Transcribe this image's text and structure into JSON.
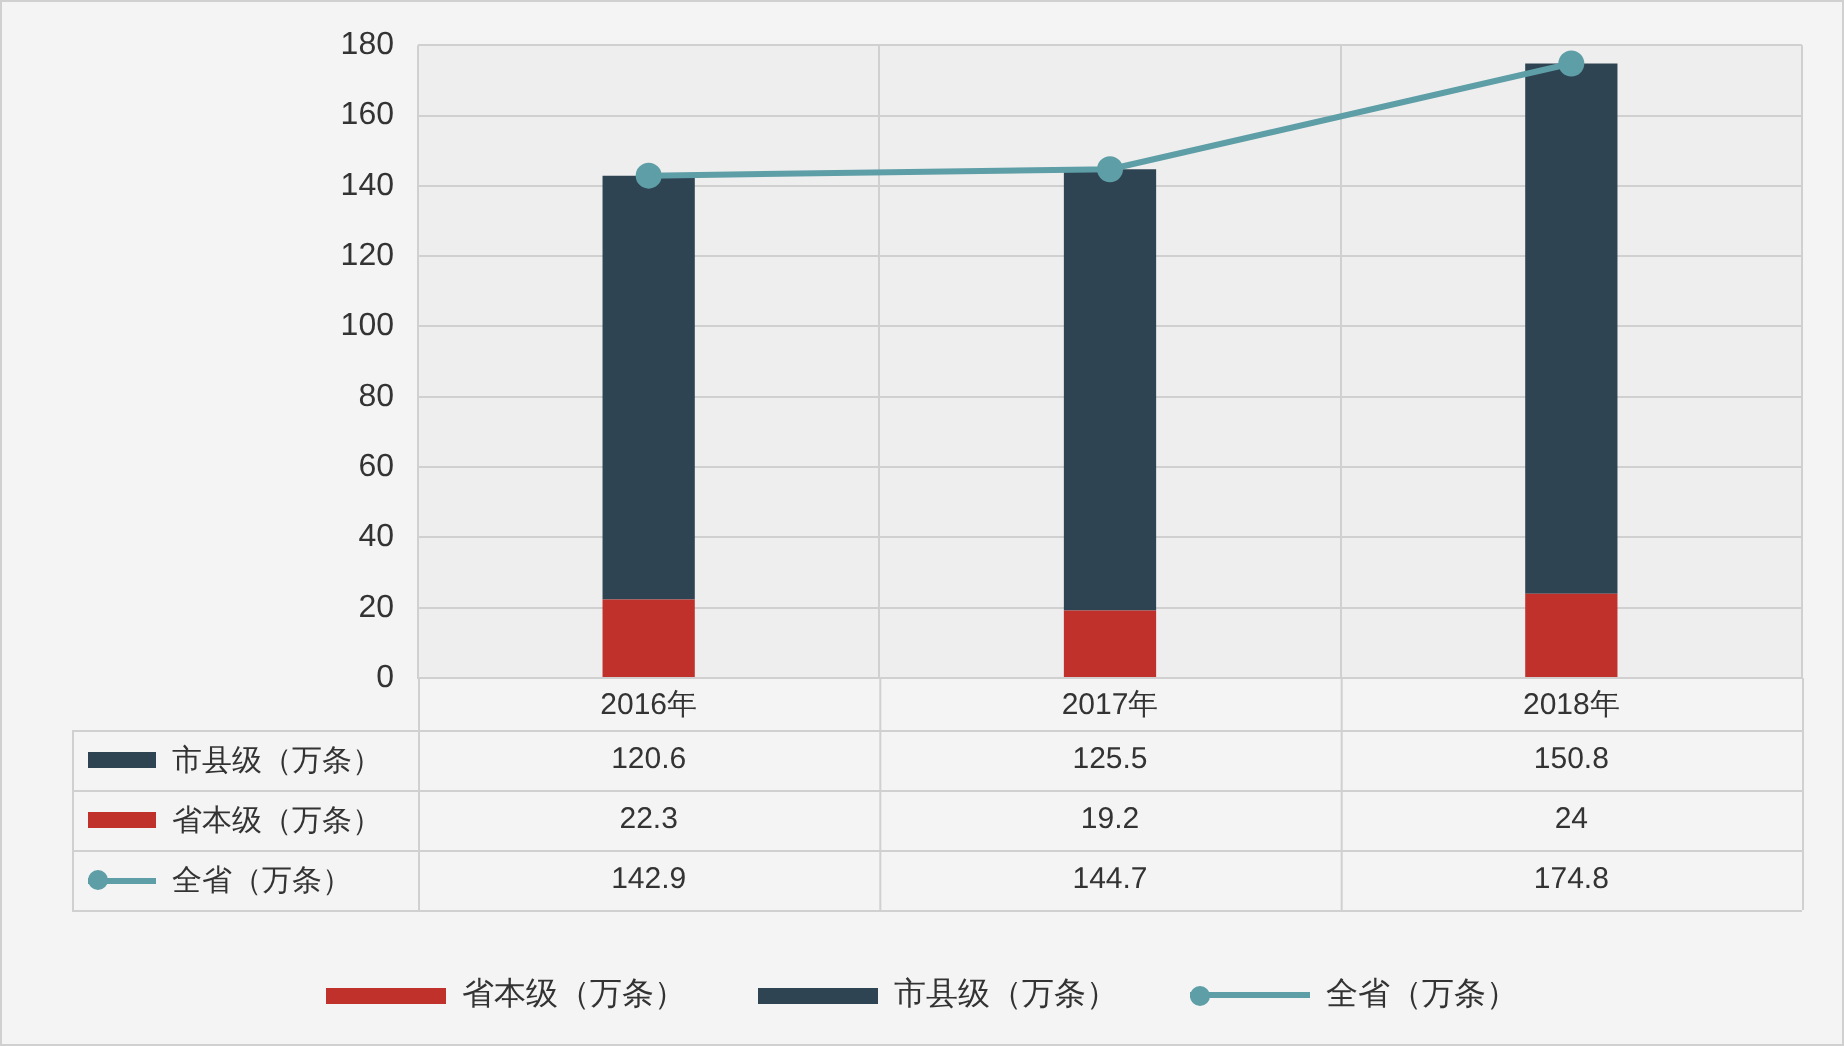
{
  "chart_data": {
    "type": "bar",
    "categories": [
      "2016年",
      "2017年",
      "2018年"
    ],
    "series": [
      {
        "name": "省本级（万条）",
        "color": "#c0312c",
        "values": [
          22.3,
          19.2,
          24
        ]
      },
      {
        "name": "市县级（万条）",
        "color": "#2e4453",
        "values": [
          120.6,
          125.5,
          150.8
        ]
      },
      {
        "name": "全省（万条）",
        "type": "line",
        "color": "#5e9ea6",
        "values": [
          142.9,
          144.7,
          174.8
        ]
      }
    ],
    "stacked": true,
    "ylim": [
      0,
      180
    ],
    "yticks": [
      0,
      20,
      40,
      60,
      80,
      100,
      120,
      140,
      160,
      180
    ],
    "grid": true,
    "legend": "bottom",
    "marker": "circle",
    "data_labels": true
  }
}
